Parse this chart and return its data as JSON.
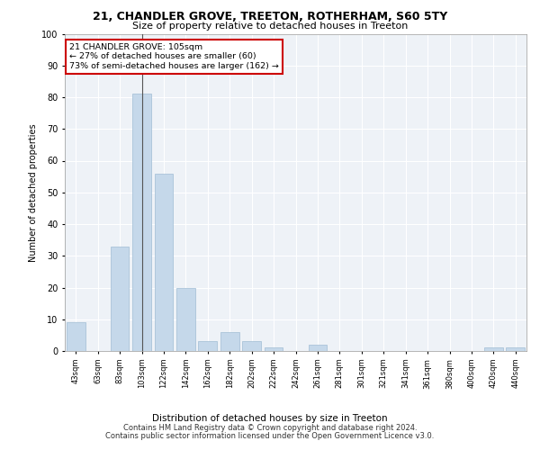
{
  "title": "21, CHANDLER GROVE, TREETON, ROTHERHAM, S60 5TY",
  "subtitle": "Size of property relative to detached houses in Treeton",
  "xlabel": "Distribution of detached houses by size in Treeton",
  "ylabel": "Number of detached properties",
  "categories": [
    "43sqm",
    "63sqm",
    "83sqm",
    "103sqm",
    "122sqm",
    "142sqm",
    "162sqm",
    "182sqm",
    "202sqm",
    "222sqm",
    "242sqm",
    "261sqm",
    "281sqm",
    "301sqm",
    "321sqm",
    "341sqm",
    "361sqm",
    "380sqm",
    "400sqm",
    "420sqm",
    "440sqm"
  ],
  "values": [
    9,
    0,
    33,
    81,
    56,
    20,
    3,
    6,
    3,
    1,
    0,
    2,
    0,
    0,
    0,
    0,
    0,
    0,
    0,
    1,
    1
  ],
  "bar_color": "#c5d8ea",
  "bar_edge_color": "#a0bcd4",
  "highlight_index": 3,
  "highlight_line_color": "#555555",
  "annotation_box_text": "21 CHANDLER GROVE: 105sqm\n← 27% of detached houses are smaller (60)\n73% of semi-detached houses are larger (162) →",
  "annotation_box_color": "#ffffff",
  "annotation_box_edge_color": "#cc0000",
  "bg_color": "#eef2f7",
  "grid_color": "#ffffff",
  "footer_line1": "Contains HM Land Registry data © Crown copyright and database right 2024.",
  "footer_line2": "Contains public sector information licensed under the Open Government Licence v3.0.",
  "ylim": [
    0,
    100
  ],
  "yticks": [
    0,
    10,
    20,
    30,
    40,
    50,
    60,
    70,
    80,
    90,
    100
  ]
}
